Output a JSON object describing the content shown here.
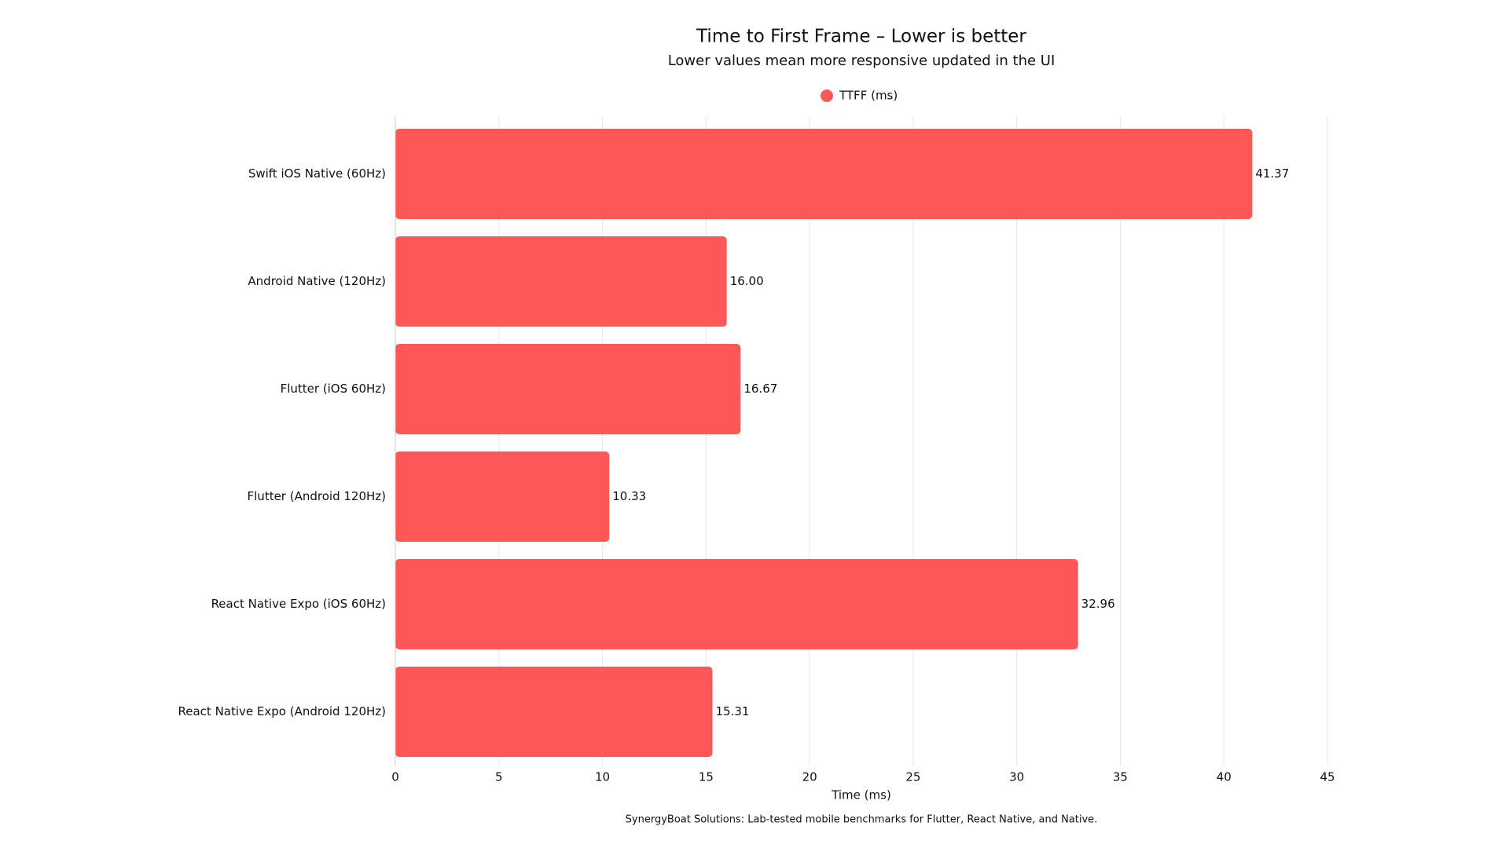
{
  "chart_data": {
    "type": "bar",
    "orientation": "horizontal",
    "title": "Time to First Frame – Lower is better",
    "subtitle": "Lower values mean more responsive updated in the UI",
    "categories": [
      "Swift iOS Native (60Hz)",
      "Android Native (120Hz)",
      "Flutter (iOS 60Hz)",
      "Flutter (Android 120Hz)",
      "React Native Expo (iOS 60Hz)",
      "React Native Expo (Android 120Hz)"
    ],
    "series": [
      {
        "name": "TTFF (ms)",
        "color": "#fe5758",
        "values": [
          41.37,
          16.0,
          16.67,
          10.33,
          32.96,
          15.31
        ],
        "value_labels": [
          "41.37",
          "16.00",
          "16.67",
          "10.33",
          "32.96",
          "15.31"
        ]
      }
    ],
    "xlabel": "Time (ms)",
    "xlim": [
      0,
      45
    ],
    "xticks": [
      0,
      5,
      10,
      15,
      20,
      25,
      30,
      35,
      40,
      45
    ],
    "grid": true,
    "legend": "top",
    "footnote": "SynergyBoat Solutions: Lab-tested mobile benchmarks for Flutter, React Native, and Native."
  }
}
